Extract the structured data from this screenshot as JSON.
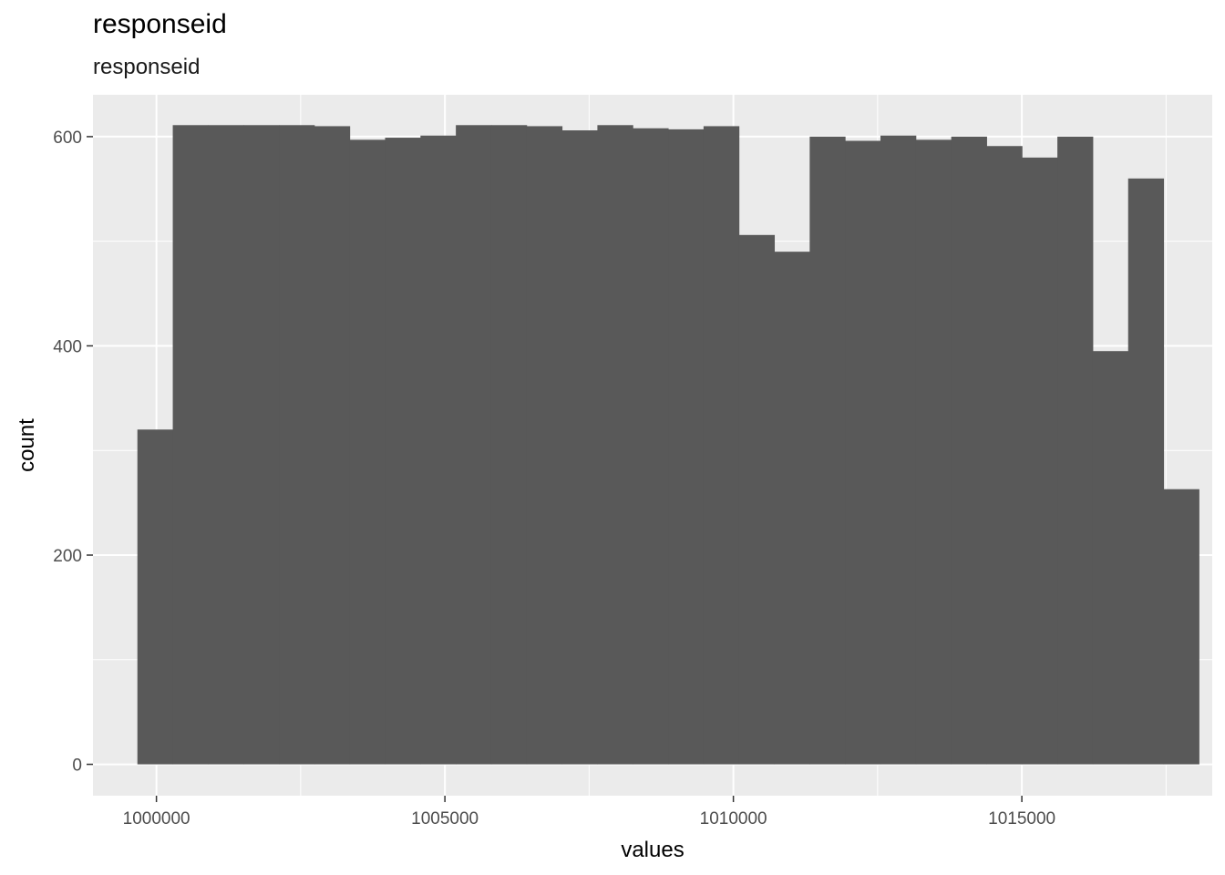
{
  "chart_data": {
    "type": "bar",
    "title": "responseid",
    "subtitle": "responseid",
    "xlabel": "values",
    "ylabel": "count",
    "xlim": [
      998900,
      1018300
    ],
    "ylim": [
      -30,
      640
    ],
    "x_ticks": [
      1000000,
      1005000,
      1010000,
      1015000
    ],
    "y_ticks": [
      0,
      200,
      400,
      600
    ],
    "bin_width": 613.3,
    "bins_start": 999670,
    "counts": [
      320,
      611,
      611,
      611,
      611,
      610,
      597,
      599,
      601,
      611,
      611,
      610,
      606,
      611,
      608,
      607,
      610,
      506,
      490,
      600,
      596,
      601,
      597,
      600,
      591,
      580,
      600,
      395,
      560,
      263
    ],
    "bar_color": "#595959",
    "panel_color": "#ebebeb",
    "grid": true
  }
}
